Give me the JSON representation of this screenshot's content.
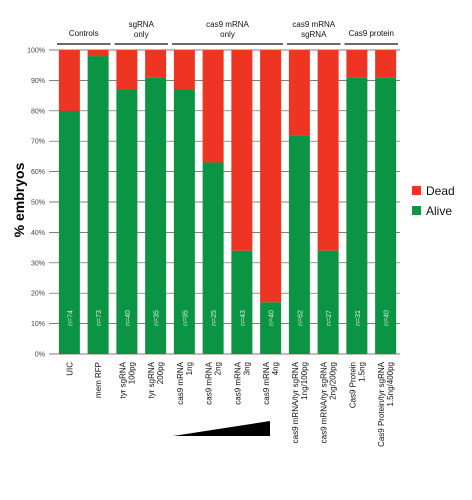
{
  "chart_data": {
    "type": "bar",
    "stacked": true,
    "ylabel": "% embryos",
    "ylim": [
      0,
      100
    ],
    "y_ticks": [
      "0%",
      "10%",
      "20%",
      "30%",
      "40%",
      "50%",
      "60%",
      "70%",
      "80%",
      "90%",
      "100%"
    ],
    "grid": true,
    "legend_position": "right",
    "categories": [
      [
        "UIC"
      ],
      [
        "mem RFP"
      ],
      [
        "tyr sgRNA",
        "100pg"
      ],
      [
        "tyr sgRNA",
        "200pg"
      ],
      [
        "cas9 mRNA",
        "1ng"
      ],
      [
        "cas9 mRNA",
        "2ng"
      ],
      [
        "cas9 mRNA",
        "3ng"
      ],
      [
        "cas9 mRNA",
        "4ng"
      ],
      [
        "cas9 mRNA/tyr sgRNA",
        "1ng/100pg"
      ],
      [
        "cas9 mRNA/tyr sgRNA",
        "2ng/200pg"
      ],
      [
        "Cas9 Protein",
        "1.5ng"
      ],
      [
        "Cas9 Protein/tyr sgRNA",
        "1.5ng/400pg"
      ]
    ],
    "n_labels": [
      "n=74",
      "n=73",
      "n=40",
      "n=35",
      "n=95",
      "n=25",
      "n=43",
      "n=40",
      "n=62",
      "n=27",
      "n=31",
      "n=40"
    ],
    "series": [
      {
        "name": "Dead",
        "color": "#ee3524",
        "values": [
          20,
          2,
          13,
          9,
          13,
          37,
          66,
          83,
          28,
          66,
          9,
          9
        ]
      },
      {
        "name": "Alive",
        "color": "#0b9444",
        "values": [
          80,
          98,
          87,
          91,
          87,
          63,
          34,
          17,
          72,
          34,
          91,
          91
        ]
      }
    ],
    "groups": [
      {
        "label": [
          "Controls"
        ],
        "from": 0,
        "to": 1
      },
      {
        "label": [
          "sgRNA",
          "only"
        ],
        "from": 2,
        "to": 3
      },
      {
        "label": [
          "cas9 mRNA",
          "only"
        ],
        "from": 4,
        "to": 7
      },
      {
        "label": [
          "cas9 mRNA",
          "sgRNA"
        ],
        "from": 8,
        "to": 9
      },
      {
        "label": [
          "Cas9 protein"
        ],
        "from": 10,
        "to": 11
      }
    ]
  }
}
